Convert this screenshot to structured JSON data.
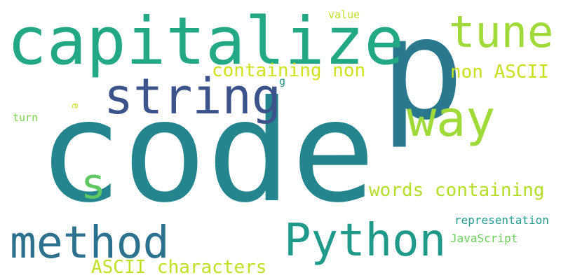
{
  "words": {
    "code": {
      "text": "code",
      "color": "#25858e"
    },
    "p": {
      "text": "p",
      "color": "#2a788e"
    },
    "capitalize": {
      "text": "capitalize",
      "color": "#22a884"
    },
    "string": {
      "text": "string",
      "color": "#3b528b"
    },
    "tune": {
      "text": "tune",
      "color": "#a0da39"
    },
    "way": {
      "text": "way",
      "color": "#a0da39"
    },
    "python": {
      "text": "Python",
      "color": "#1f9a8a"
    },
    "method": {
      "text": "method",
      "color": "#2c718e"
    },
    "s": {
      "text": "s",
      "color": "#5ec962"
    },
    "containing_non": {
      "text": "containing non",
      "color": "#d0e11c"
    },
    "non_ascii": {
      "text": "non ASCII",
      "color": "#c8e020"
    },
    "words_containing": {
      "text": "words containing",
      "color": "#b5de2b"
    },
    "ascii_characters": {
      "text": "ASCII characters",
      "color": "#c0df25"
    },
    "representation": {
      "text": "representation",
      "color": "#1f988b"
    },
    "javascript": {
      "text": "JavaScript",
      "color": "#6ccd5a"
    },
    "value": {
      "text": "value",
      "color": "#c2df23"
    },
    "turn": {
      "text": "turn",
      "color": "#7ad151"
    },
    "g": {
      "text": "g",
      "color": "#21918c"
    },
    "e": {
      "text": "e",
      "color": "#c8e020"
    }
  }
}
